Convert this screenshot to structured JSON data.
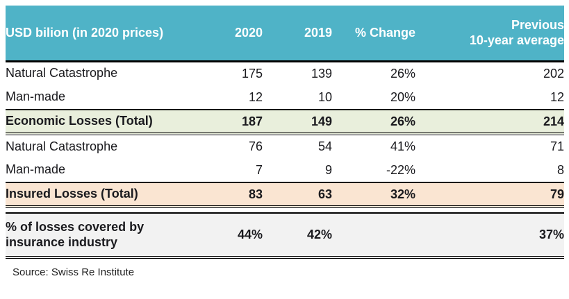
{
  "colors": {
    "header_bg": "#4fb3c7",
    "header_text": "#ffffff",
    "economic_total_bg": "#e9efdc",
    "insured_total_bg": "#fae5d2",
    "coverage_bg": "#f2f2f2",
    "rule": "#000000"
  },
  "table": {
    "columns": {
      "label": "USD bilion (in 2020 prices)",
      "y2020": "2020",
      "y2019": "2019",
      "change": "% Change",
      "previous": "Previous\n10-year average"
    },
    "rows": [
      {
        "label": "Natural Catastrophe",
        "y2020": "175",
        "y2019": "139",
        "change": "26%",
        "previous": "202"
      },
      {
        "label": "Man-made",
        "y2020": "12",
        "y2019": "10",
        "change": "20%",
        "previous": "12"
      },
      {
        "label": "Economic Losses (Total)",
        "y2020": "187",
        "y2019": "149",
        "change": "26%",
        "previous": "214"
      },
      {
        "label": "Natural Catastrophe",
        "y2020": "76",
        "y2019": "54",
        "change": "41%",
        "previous": "71"
      },
      {
        "label": "Man-made",
        "y2020": "7",
        "y2019": "9",
        "change": "-22%",
        "previous": "8"
      },
      {
        "label": "Insured Losses (Total)",
        "y2020": "83",
        "y2019": "63",
        "change": "32%",
        "previous": "79"
      },
      {
        "label": "% of losses covered by\ninsurance industry",
        "y2020": "44%",
        "y2019": "42%",
        "change": "",
        "previous": "37%"
      }
    ]
  },
  "source": "Source: Swiss Re Institute"
}
